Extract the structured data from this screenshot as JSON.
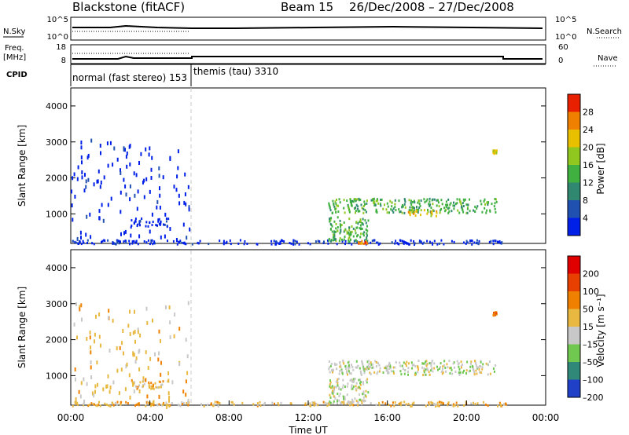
{
  "header": {
    "station": "Blackstone (fitACF)",
    "beam": "Beam 15",
    "dates": "26/Dec/2008 – 27/Dec/2008"
  },
  "summary_panels": {
    "nsky": {
      "label": "N.Sky",
      "ticks": [
        "10^5",
        "10^0"
      ],
      "right_ticks": [
        "10^5",
        "10^0"
      ],
      "right_label": "N.Search"
    },
    "freq": {
      "label_top": "Freq.",
      "label_bottom": "[MHz]",
      "ticks": [
        "18",
        "8"
      ],
      "right_ticks": [
        "60",
        "0"
      ],
      "right_label": "Nave"
    },
    "cpid": {
      "label": "CPID",
      "modes": [
        {
          "text": "normal (fast stereo) 153",
          "start_h": 0
        },
        {
          "text": "themis (tau) 3310",
          "start_h": 6
        }
      ]
    }
  },
  "chart_data": [
    {
      "type": "heatmap",
      "parameter": "Power",
      "xlabel": "",
      "ylabel": "Slant Range [km]",
      "xlim": [
        0,
        24
      ],
      "ylim": [
        180,
        4500
      ],
      "ytick_values": [
        1000,
        2000,
        3000,
        4000
      ],
      "ytick_labels": [
        "1000",
        "2000",
        "3000",
        "4000"
      ],
      "colorbar": {
        "label": "Power [dB]",
        "range": [
          0,
          32
        ],
        "ticks": [
          "4",
          "8",
          "12",
          "16",
          "20",
          "24",
          "28"
        ],
        "tick_values": [
          4,
          8,
          12,
          16,
          20,
          24,
          28
        ],
        "colors": [
          "#0020e8",
          "#2050b0",
          "#308870",
          "#40b040",
          "#90c820",
          "#e8c000",
          "#f08000",
          "#e82000"
        ]
      },
      "regions": [
        {
          "x": [
            0,
            6
          ],
          "y": [
            180,
            3100
          ],
          "level": 0,
          "note": "sparse scatter"
        },
        {
          "x": [
            3.0,
            4.9
          ],
          "y": [
            650,
            900
          ],
          "level": 0
        },
        {
          "x": [
            0,
            22
          ],
          "y": [
            180,
            300
          ],
          "level": 0
        },
        {
          "x": [
            13,
            21.5
          ],
          "y": [
            1050,
            1450
          ],
          "level": 3
        },
        {
          "x": [
            13,
            15
          ],
          "y": [
            250,
            950
          ],
          "level": 3
        },
        {
          "x": [
            17,
            18.5
          ],
          "y": [
            950,
            1150
          ],
          "level": 5
        },
        {
          "x": [
            14.5,
            15
          ],
          "y": [
            200,
            280
          ],
          "level": 6
        },
        {
          "x": [
            21.3,
            21.5
          ],
          "y": [
            2700,
            2800
          ],
          "level": 5
        }
      ]
    },
    {
      "type": "heatmap",
      "parameter": "Velocity",
      "xlabel": "Time UT",
      "ylabel": "Slant Range [km]",
      "xlim": [
        0,
        24
      ],
      "ylim": [
        180,
        4500
      ],
      "xtick_values": [
        0,
        4,
        8,
        12,
        16,
        20,
        24
      ],
      "xtick_labels": [
        "00:00",
        "04:00",
        "08:00",
        "12:00",
        "16:00",
        "20:00",
        "00:00"
      ],
      "ytick_values": [
        1000,
        2000,
        3000,
        4000
      ],
      "ytick_labels": [
        "1000",
        "2000",
        "3000",
        "4000"
      ],
      "colorbar": {
        "label": "Velocity [m s⁻¹]",
        "range": [
          -250,
          250
        ],
        "ticks": [
          "200",
          "100",
          "50",
          "15",
          "–15",
          "–50",
          "–100",
          "–200"
        ],
        "colors": [
          "#2040c8",
          "#308878",
          "#70c850",
          "#c8c8c8",
          "#e8b840",
          "#f08000",
          "#e84000",
          "#e00000"
        ]
      },
      "regions": [
        {
          "x": [
            0,
            6
          ],
          "y": [
            180,
            3100
          ],
          "level": 4,
          "note": "sparse scatter"
        },
        {
          "x": [
            3.0,
            4.9
          ],
          "y": [
            650,
            900
          ],
          "level": 4
        },
        {
          "x": [
            0,
            22
          ],
          "y": [
            180,
            300
          ],
          "level": 4
        },
        {
          "x": [
            13,
            21.5
          ],
          "y": [
            1050,
            1450
          ],
          "level": 3
        },
        {
          "x": [
            13,
            15
          ],
          "y": [
            250,
            950
          ],
          "level": 3
        },
        {
          "x": [
            21.3,
            21.5
          ],
          "y": [
            2700,
            2800
          ],
          "level": 5
        }
      ]
    }
  ]
}
